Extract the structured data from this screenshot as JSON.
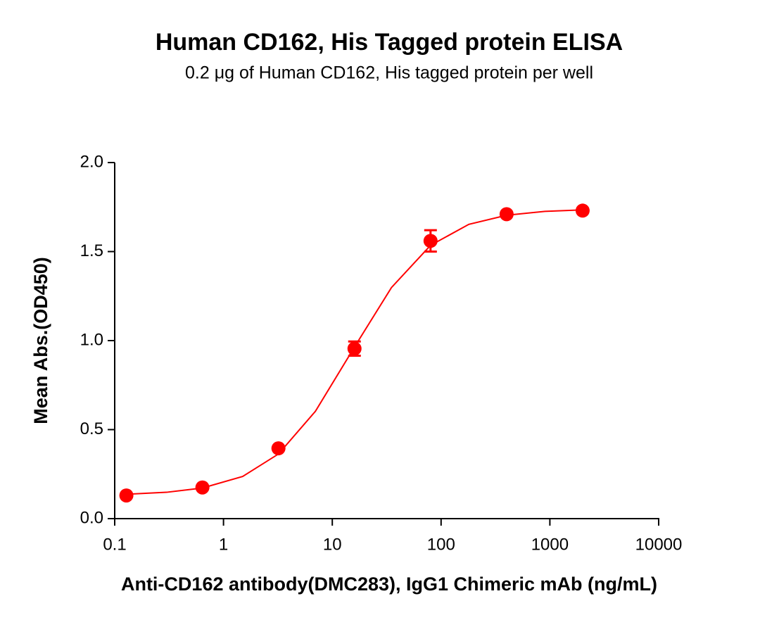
{
  "chart_data": {
    "type": "scatter",
    "title": "Human CD162, His Tagged protein ELISA",
    "subtitle": "0.2 μg of Human CD162, His tagged protein per well",
    "x_label": "Anti-CD162 antibody(DMC283), IgG1 Chimeric mAb (ng/mL)",
    "y_label": "Mean Abs.(OD450)",
    "x": [
      0.128,
      0.64,
      3.2,
      16,
      80,
      400,
      2000
    ],
    "series": [
      {
        "color": "#ff0000",
        "values": [
          0.13,
          0.175,
          0.395,
          0.955,
          1.56,
          1.71,
          1.73
        ],
        "errors": [
          0.01,
          0.01,
          0.01,
          0.04,
          0.06,
          0.01,
          0.01
        ]
      }
    ],
    "fit": {
      "x": [
        0.128,
        0.3,
        0.64,
        1.5,
        3.2,
        7,
        16,
        35,
        80,
        180,
        400,
        900,
        2000
      ],
      "values": [
        0.137,
        0.148,
        0.172,
        0.237,
        0.363,
        0.603,
        0.964,
        1.298,
        1.535,
        1.653,
        1.704,
        1.726,
        1.734
      ]
    },
    "x_log": true,
    "xlim": [
      0.1,
      10000
    ],
    "ylim": [
      0,
      2
    ],
    "xticks": [
      0.1,
      1,
      10,
      100,
      1000,
      10000
    ],
    "yticks": [
      {
        "value": 0,
        "label": "0.0"
      },
      0.5,
      {
        "value": 1,
        "label": "1.0"
      },
      1.5,
      {
        "value": 2,
        "label": "2.0"
      }
    ]
  }
}
